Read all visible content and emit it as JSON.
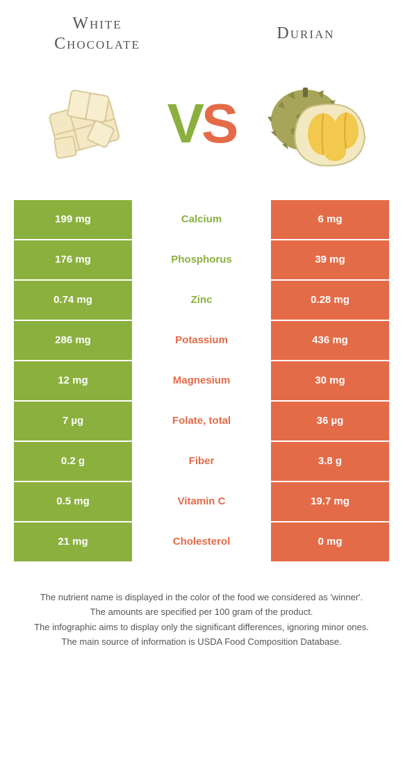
{
  "foods": {
    "left": {
      "name": "White Chocolate"
    },
    "right": {
      "name": "Durian"
    }
  },
  "vs_text": {
    "v": "V",
    "s": "S"
  },
  "colors": {
    "left": "#8bb03e",
    "right": "#e46b48",
    "left_text": "#8bb03e",
    "right_text": "#e46b48"
  },
  "rows": [
    {
      "left": "199 mg",
      "label": "Calcium",
      "right": "6 mg",
      "winner": "left"
    },
    {
      "left": "176 mg",
      "label": "Phosphorus",
      "right": "39 mg",
      "winner": "left"
    },
    {
      "left": "0.74 mg",
      "label": "Zinc",
      "right": "0.28 mg",
      "winner": "left"
    },
    {
      "left": "286 mg",
      "label": "Potassium",
      "right": "436 mg",
      "winner": "right"
    },
    {
      "left": "12 mg",
      "label": "Magnesium",
      "right": "30 mg",
      "winner": "right"
    },
    {
      "left": "7 µg",
      "label": "Folate, total",
      "right": "36 µg",
      "winner": "right"
    },
    {
      "left": "0.2 g",
      "label": "Fiber",
      "right": "3.8 g",
      "winner": "right"
    },
    {
      "left": "0.5 mg",
      "label": "Vitamin C",
      "right": "19.7 mg",
      "winner": "right"
    },
    {
      "left": "21 mg",
      "label": "Cholesterol",
      "right": "0 mg",
      "winner": "right"
    }
  ],
  "footer": [
    "The nutrient name is displayed in the color of the food we considered as 'winner'.",
    "The amounts are specified per 100 gram of the product.",
    "The infographic aims to display only the significant differences, ignoring minor ones.",
    "The main source of information is USDA Food Composition Database."
  ]
}
